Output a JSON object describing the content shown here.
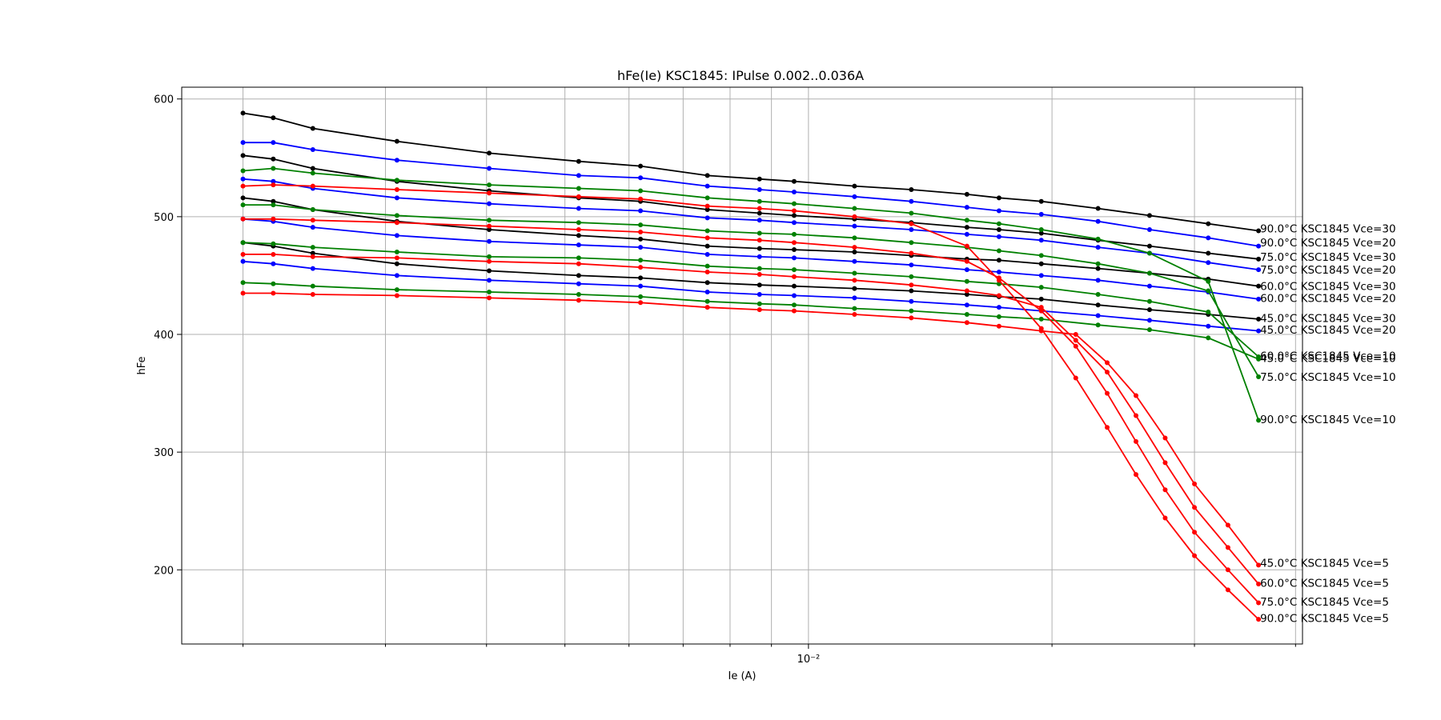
{
  "chart_data": {
    "type": "line",
    "title": "hFe(Ie) KSC1845: IPulse 0.002..0.036A",
    "xlabel": "Ie (A)",
    "ylabel": "hFe",
    "xscale": "log",
    "xlim": [
      0.00168,
      0.0408
    ],
    "ylim": [
      137,
      610
    ],
    "yticks": [
      200,
      300,
      400,
      500,
      600
    ],
    "xtick_labels": [
      {
        "value": 0.01,
        "label": "10⁻²"
      }
    ],
    "grid": true,
    "legend": "none",
    "series": [
      {
        "name": "90.0°C KSC1845 Vce=30",
        "color": "#000000",
        "x": [
          0.002,
          0.00218,
          0.00244,
          0.0031,
          0.00403,
          0.0052,
          0.0062,
          0.0075,
          0.0087,
          0.0096,
          0.0114,
          0.0134,
          0.0157,
          0.0172,
          0.0194,
          0.0228,
          0.0264,
          0.0312,
          0.036
        ],
        "y": [
          588,
          584,
          575,
          564,
          554,
          547,
          543,
          535,
          532,
          530,
          526,
          523,
          519,
          516,
          513,
          507,
          501,
          494,
          488
        ]
      },
      {
        "name": "90.0°C KSC1845 Vce=20",
        "color": "#0000ff",
        "x": [
          0.002,
          0.00218,
          0.00244,
          0.0031,
          0.00403,
          0.0052,
          0.0062,
          0.0075,
          0.0087,
          0.0096,
          0.0114,
          0.0134,
          0.0157,
          0.0172,
          0.0194,
          0.0228,
          0.0264,
          0.0312,
          0.036
        ],
        "y": [
          563,
          563,
          557,
          548,
          541,
          535,
          533,
          526,
          523,
          521,
          517,
          513,
          508,
          505,
          502,
          496,
          489,
          482,
          475
        ]
      },
      {
        "name": "75.0°C KSC1845 Vce=30",
        "color": "#000000",
        "x": [
          0.002,
          0.00218,
          0.00244,
          0.0031,
          0.00403,
          0.0052,
          0.0062,
          0.0075,
          0.0087,
          0.0096,
          0.0114,
          0.0134,
          0.0157,
          0.0172,
          0.0194,
          0.0228,
          0.0264,
          0.0312,
          0.036
        ],
        "y": [
          552,
          549,
          541,
          530,
          522,
          516,
          513,
          506,
          503,
          501,
          498,
          495,
          491,
          489,
          486,
          480,
          475,
          469,
          464
        ]
      },
      {
        "name": "75.0°C KSC1845 Vce=20",
        "color": "#0000ff",
        "x": [
          0.002,
          0.00218,
          0.00244,
          0.0031,
          0.00403,
          0.0052,
          0.0062,
          0.0075,
          0.0087,
          0.0096,
          0.0114,
          0.0134,
          0.0157,
          0.0172,
          0.0194,
          0.0228,
          0.0264,
          0.0312,
          0.036
        ],
        "y": [
          532,
          530,
          524,
          516,
          511,
          507,
          505,
          499,
          497,
          495,
          492,
          489,
          485,
          483,
          480,
          474,
          469,
          461,
          455
        ]
      },
      {
        "name": "60.0°C KSC1845 Vce=30",
        "color": "#000000",
        "x": [
          0.002,
          0.00218,
          0.00244,
          0.0031,
          0.00403,
          0.0052,
          0.0062,
          0.0075,
          0.0087,
          0.0096,
          0.0114,
          0.0134,
          0.0157,
          0.0172,
          0.0194,
          0.0228,
          0.0264,
          0.0312,
          0.036
        ],
        "y": [
          516,
          513,
          506,
          496,
          489,
          484,
          481,
          475,
          473,
          472,
          470,
          467,
          464,
          463,
          460,
          456,
          452,
          447,
          441
        ]
      },
      {
        "name": "60.0°C KSC1845 Vce=20",
        "color": "#0000ff",
        "x": [
          0.002,
          0.00218,
          0.00244,
          0.0031,
          0.00403,
          0.0052,
          0.0062,
          0.0075,
          0.0087,
          0.0096,
          0.0114,
          0.0134,
          0.0157,
          0.0172,
          0.0194,
          0.0228,
          0.0264,
          0.0312,
          0.036
        ],
        "y": [
          498,
          496,
          491,
          484,
          479,
          476,
          474,
          468,
          466,
          465,
          462,
          459,
          455,
          453,
          450,
          446,
          441,
          436,
          430
        ]
      },
      {
        "name": "45.0°C KSC1845 Vce=30",
        "color": "#000000",
        "x": [
          0.002,
          0.00218,
          0.00244,
          0.0031,
          0.00403,
          0.0052,
          0.0062,
          0.0075,
          0.0087,
          0.0096,
          0.0114,
          0.0134,
          0.0157,
          0.0172,
          0.0194,
          0.0228,
          0.0264,
          0.0312,
          0.036
        ],
        "y": [
          478,
          475,
          469,
          460,
          454,
          450,
          448,
          444,
          442,
          441,
          439,
          437,
          434,
          432,
          430,
          425,
          421,
          417,
          413
        ]
      },
      {
        "name": "45.0°C KSC1845 Vce=20",
        "color": "#0000ff",
        "x": [
          0.002,
          0.00218,
          0.00244,
          0.0031,
          0.00403,
          0.0052,
          0.0062,
          0.0075,
          0.0087,
          0.0096,
          0.0114,
          0.0134,
          0.0157,
          0.0172,
          0.0194,
          0.0228,
          0.0264,
          0.0312,
          0.036
        ],
        "y": [
          462,
          460,
          456,
          450,
          446,
          443,
          441,
          436,
          434,
          433,
          431,
          428,
          425,
          423,
          420,
          416,
          412,
          407,
          403
        ]
      },
      {
        "name": "45.0°C KSC1845 Vce=10",
        "color": "#008000",
        "x": [
          0.002,
          0.00218,
          0.00244,
          0.0031,
          0.00403,
          0.0052,
          0.0062,
          0.0075,
          0.0087,
          0.0096,
          0.0114,
          0.0134,
          0.0157,
          0.0172,
          0.0194,
          0.0228,
          0.0264,
          0.0312,
          0.036
        ],
        "y": [
          444,
          443,
          441,
          438,
          436,
          434,
          432,
          428,
          426,
          425,
          422,
          420,
          417,
          415,
          413,
          408,
          404,
          397,
          379
        ]
      },
      {
        "name": "60.0°C KSC1845 Vce=10",
        "color": "#008000",
        "x": [
          0.002,
          0.00218,
          0.00244,
          0.0031,
          0.00403,
          0.0052,
          0.0062,
          0.0075,
          0.0087,
          0.0096,
          0.0114,
          0.0134,
          0.0157,
          0.0172,
          0.0194,
          0.0228,
          0.0264,
          0.0312,
          0.036
        ],
        "y": [
          478,
          477,
          474,
          470,
          466,
          465,
          463,
          458,
          456,
          455,
          452,
          449,
          445,
          443,
          440,
          434,
          428,
          419,
          381
        ]
      },
      {
        "name": "75.0°C KSC1845 Vce=10",
        "color": "#008000",
        "x": [
          0.002,
          0.00218,
          0.00244,
          0.0031,
          0.00403,
          0.0052,
          0.0062,
          0.0075,
          0.0087,
          0.0096,
          0.0114,
          0.0134,
          0.0157,
          0.0172,
          0.0194,
          0.0228,
          0.0264,
          0.0312,
          0.036
        ],
        "y": [
          510,
          510,
          506,
          501,
          497,
          495,
          493,
          488,
          486,
          485,
          482,
          478,
          474,
          471,
          467,
          460,
          452,
          437,
          364
        ]
      },
      {
        "name": "90.0°C KSC1845 Vce=10",
        "color": "#008000",
        "x": [
          0.002,
          0.00218,
          0.00244,
          0.0031,
          0.00403,
          0.0052,
          0.0062,
          0.0075,
          0.0087,
          0.0096,
          0.0114,
          0.0134,
          0.0157,
          0.0172,
          0.0194,
          0.0228,
          0.0264,
          0.0312,
          0.036
        ],
        "y": [
          539,
          541,
          537,
          531,
          527,
          524,
          522,
          516,
          513,
          511,
          507,
          503,
          497,
          494,
          489,
          481,
          469,
          445,
          327
        ]
      },
      {
        "name": "45.0°C KSC1845 Vce=5",
        "color": "#ff0000",
        "x": [
          0.002,
          0.00218,
          0.00244,
          0.0031,
          0.00403,
          0.0052,
          0.0062,
          0.0075,
          0.0087,
          0.0096,
          0.0114,
          0.0134,
          0.0157,
          0.0172,
          0.0194,
          0.0214,
          0.0234,
          0.0254,
          0.0276,
          0.03,
          0.033,
          0.036
        ],
        "y": [
          435,
          435,
          434,
          433,
          431,
          429,
          427,
          423,
          421,
          420,
          417,
          414,
          410,
          407,
          403,
          400,
          376,
          348,
          312,
          273,
          238,
          204
        ]
      },
      {
        "name": "60.0°C KSC1845 Vce=5",
        "color": "#ff0000",
        "x": [
          0.002,
          0.00218,
          0.00244,
          0.0031,
          0.00403,
          0.0052,
          0.0062,
          0.0075,
          0.0087,
          0.0096,
          0.0114,
          0.0134,
          0.0157,
          0.0172,
          0.0194,
          0.0214,
          0.0234,
          0.0254,
          0.0276,
          0.03,
          0.033,
          0.036
        ],
        "y": [
          468,
          468,
          466,
          465,
          462,
          460,
          457,
          453,
          451,
          449,
          446,
          442,
          437,
          433,
          423,
          395,
          368,
          331,
          291,
          253,
          219,
          188
        ]
      },
      {
        "name": "75.0°C KSC1845 Vce=5",
        "color": "#ff0000",
        "x": [
          0.002,
          0.00218,
          0.00244,
          0.0031,
          0.00403,
          0.0052,
          0.0062,
          0.0075,
          0.0087,
          0.0096,
          0.0114,
          0.0134,
          0.0157,
          0.0172,
          0.0194,
          0.0214,
          0.0234,
          0.0254,
          0.0276,
          0.03,
          0.033,
          0.036
        ],
        "y": [
          498,
          498,
          497,
          495,
          492,
          489,
          487,
          482,
          480,
          478,
          474,
          469,
          462,
          448,
          420,
          390,
          350,
          309,
          268,
          232,
          200,
          172
        ]
      },
      {
        "name": "90.0°C KSC1845 Vce=5",
        "color": "#ff0000",
        "x": [
          0.002,
          0.00218,
          0.00244,
          0.0031,
          0.00403,
          0.0052,
          0.0062,
          0.0075,
          0.0087,
          0.0096,
          0.0114,
          0.0134,
          0.0157,
          0.0172,
          0.0194,
          0.0214,
          0.0234,
          0.0254,
          0.0276,
          0.03,
          0.033,
          0.036
        ],
        "y": [
          526,
          527,
          526,
          523,
          520,
          517,
          515,
          509,
          507,
          505,
          500,
          494,
          475,
          446,
          405,
          363,
          321,
          281,
          244,
          212,
          183,
          158
        ]
      }
    ],
    "series_labels": [
      {
        "text": "90.0°C KSC1845 Vce=30",
        "y": 490
      },
      {
        "text": "90.0°C KSC1845 Vce=20",
        "y": 478
      },
      {
        "text": "75.0°C KSC1845 Vce=30",
        "y": 466
      },
      {
        "text": "75.0°C KSC1845 Vce=20",
        "y": 455
      },
      {
        "text": "60.0°C KSC1845 Vce=30",
        "y": 441
      },
      {
        "text": "60.0°C KSC1845 Vce=20",
        "y": 431
      },
      {
        "text": "45.0°C KSC1845 Vce=30",
        "y": 414
      },
      {
        "text": "45.0°C KSC1845 Vce=20",
        "y": 404
      },
      {
        "text": "60.0°C KSC1845 Vce=10",
        "y": 382
      },
      {
        "text": "45.0°C KSC1845 Vce=10",
        "y": 380
      },
      {
        "text": "75.0°C KSC1845 Vce=10",
        "y": 364
      },
      {
        "text": "90.0°C KSC1845 Vce=10",
        "y": 328
      },
      {
        "text": "45.0°C KSC1845 Vce=5",
        "y": 206
      },
      {
        "text": "60.0°C KSC1845 Vce=5",
        "y": 189
      },
      {
        "text": "75.0°C KSC1845 Vce=5",
        "y": 173
      },
      {
        "text": "90.0°C KSC1845 Vce=5",
        "y": 159
      }
    ]
  }
}
